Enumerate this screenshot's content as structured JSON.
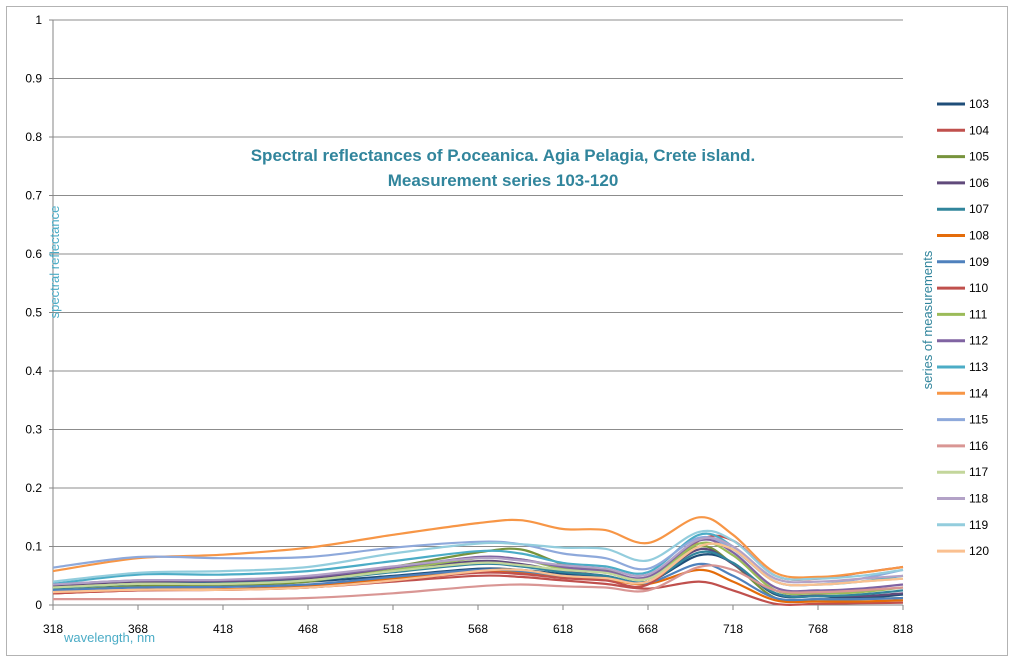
{
  "chart_data": {
    "type": "line",
    "title_lines": [
      "Spectral reflectances of P.oceanica. Agia Pelagia, Crete island.",
      "Measurement series 103-120"
    ],
    "xlabel": "wavelength, nm",
    "ylabel": "spectral reflectance",
    "legend_title": "series of measurements",
    "xlim": [
      318,
      818
    ],
    "ylim": [
      0,
      1
    ],
    "x_ticks": [
      "318",
      "368",
      "418",
      "468",
      "518",
      "568",
      "618",
      "668",
      "718",
      "768",
      "818"
    ],
    "y_ticks": [
      "0",
      "0.1",
      "0.2",
      "0.3",
      "0.4",
      "0.5",
      "0.6",
      "0.7",
      "0.8",
      "0.9",
      "1"
    ],
    "grid": "horizontal",
    "legend_position": "right",
    "x": [
      318,
      368,
      418,
      468,
      518,
      568,
      593,
      618,
      643,
      668,
      698,
      718,
      743,
      768,
      793,
      818
    ],
    "series": [
      {
        "name": "103",
        "color": "#1f4e79",
        "values": [
          0.03,
          0.035,
          0.036,
          0.04,
          0.05,
          0.062,
          0.06,
          0.053,
          0.048,
          0.04,
          0.085,
          0.072,
          0.018,
          0.015,
          0.012,
          0.018
        ]
      },
      {
        "name": "104",
        "color": "#c0504d",
        "values": [
          0.02,
          0.025,
          0.026,
          0.03,
          0.04,
          0.05,
          0.048,
          0.042,
          0.036,
          0.028,
          0.04,
          0.025,
          0.002,
          0.002,
          0.003,
          0.004
        ]
      },
      {
        "name": "105",
        "color": "#77933c",
        "values": [
          0.025,
          0.032,
          0.034,
          0.04,
          0.065,
          0.09,
          0.095,
          0.07,
          0.06,
          0.045,
          0.1,
          0.07,
          0.012,
          0.01,
          0.01,
          0.012
        ]
      },
      {
        "name": "106",
        "color": "#604a7b",
        "values": [
          0.032,
          0.04,
          0.04,
          0.045,
          0.06,
          0.075,
          0.07,
          0.058,
          0.05,
          0.04,
          0.095,
          0.07,
          0.02,
          0.016,
          0.015,
          0.02
        ]
      },
      {
        "name": "107",
        "color": "#31859c",
        "values": [
          0.028,
          0.036,
          0.037,
          0.042,
          0.056,
          0.07,
          0.066,
          0.056,
          0.05,
          0.04,
          0.09,
          0.072,
          0.02,
          0.015,
          0.018,
          0.025
        ]
      },
      {
        "name": "108",
        "color": "#e46c0a",
        "values": [
          0.02,
          0.026,
          0.027,
          0.032,
          0.045,
          0.058,
          0.055,
          0.048,
          0.044,
          0.036,
          0.06,
          0.04,
          0.008,
          0.006,
          0.006,
          0.008
        ]
      },
      {
        "name": "109",
        "color": "#4f81bd",
        "values": [
          0.025,
          0.03,
          0.031,
          0.035,
          0.048,
          0.06,
          0.058,
          0.05,
          0.046,
          0.038,
          0.07,
          0.05,
          0.012,
          0.01,
          0.01,
          0.012
        ]
      },
      {
        "name": "110",
        "color": "#c0504d",
        "values": [
          0.02,
          0.025,
          0.026,
          0.03,
          0.042,
          0.055,
          0.053,
          0.046,
          0.042,
          0.035,
          0.11,
          0.11,
          0.05,
          0.045,
          0.055,
          0.065
        ]
      },
      {
        "name": "111",
        "color": "#9bbb59",
        "values": [
          0.03,
          0.036,
          0.036,
          0.042,
          0.06,
          0.08,
          0.078,
          0.062,
          0.055,
          0.045,
          0.105,
          0.085,
          0.025,
          0.02,
          0.022,
          0.03
        ]
      },
      {
        "name": "112",
        "color": "#8064a2",
        "values": [
          0.035,
          0.042,
          0.042,
          0.048,
          0.064,
          0.082,
          0.078,
          0.065,
          0.058,
          0.048,
          0.11,
          0.09,
          0.03,
          0.025,
          0.028,
          0.035
        ]
      },
      {
        "name": "113",
        "color": "#4bacc6",
        "values": [
          0.036,
          0.052,
          0.052,
          0.058,
          0.075,
          0.092,
          0.088,
          0.072,
          0.066,
          0.056,
          0.12,
          0.1,
          0.04,
          0.035,
          0.04,
          0.05
        ]
      },
      {
        "name": "114",
        "color": "#f79646",
        "values": [
          0.058,
          0.08,
          0.086,
          0.098,
          0.12,
          0.14,
          0.145,
          0.13,
          0.128,
          0.106,
          0.15,
          0.12,
          0.055,
          0.048,
          0.055,
          0.065
        ]
      },
      {
        "name": "115",
        "color": "#8ea9db",
        "values": [
          0.064,
          0.082,
          0.08,
          0.082,
          0.098,
          0.108,
          0.104,
          0.088,
          0.08,
          0.062,
          0.115,
          0.095,
          0.04,
          0.035,
          0.045,
          0.06
        ]
      },
      {
        "name": "116",
        "color": "#d99694",
        "values": [
          0.01,
          0.01,
          0.01,
          0.012,
          0.02,
          0.032,
          0.035,
          0.032,
          0.03,
          0.025,
          0.065,
          0.06,
          0.025,
          0.022,
          0.025,
          0.03
        ]
      },
      {
        "name": "117",
        "color": "#c3d69b",
        "values": [
          0.03,
          0.036,
          0.036,
          0.042,
          0.058,
          0.072,
          0.068,
          0.06,
          0.055,
          0.045,
          0.1,
          0.095,
          0.04,
          0.035,
          0.04,
          0.045
        ]
      },
      {
        "name": "118",
        "color": "#b3a2c7",
        "values": [
          0.035,
          0.042,
          0.043,
          0.05,
          0.066,
          0.08,
          0.076,
          0.068,
          0.062,
          0.052,
          0.112,
          0.1,
          0.045,
          0.04,
          0.045,
          0.05
        ]
      },
      {
        "name": "119",
        "color": "#93cddd",
        "values": [
          0.04,
          0.055,
          0.058,
          0.065,
          0.088,
          0.105,
          0.104,
          0.098,
          0.096,
          0.076,
          0.125,
          0.11,
          0.05,
          0.045,
          0.05,
          0.06
        ]
      },
      {
        "name": "120",
        "color": "#fac090",
        "values": [
          0.022,
          0.026,
          0.026,
          0.03,
          0.042,
          0.058,
          0.06,
          0.05,
          0.046,
          0.04,
          0.1,
          0.095,
          0.04,
          0.035,
          0.04,
          0.045
        ]
      }
    ]
  }
}
